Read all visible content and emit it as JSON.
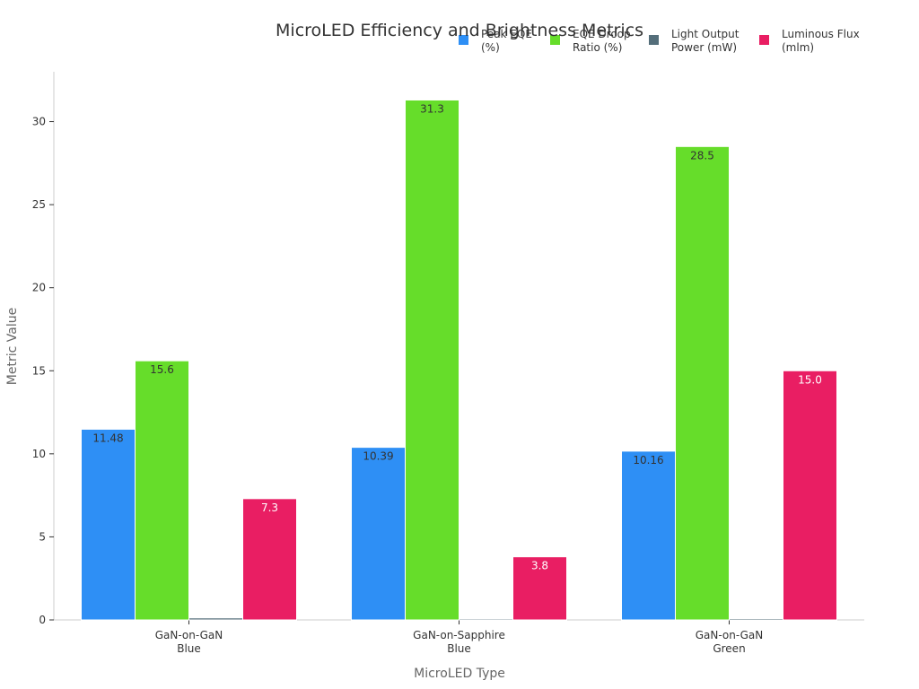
{
  "chart_data": {
    "type": "bar",
    "title": "MicroLED Efficiency and Brightness Metrics",
    "xlabel": "MicroLED Type",
    "ylabel": "Metric Value",
    "ylim": [
      0,
      33
    ],
    "yticks": [
      0,
      5,
      10,
      15,
      20,
      25,
      30
    ],
    "categories": [
      [
        "GaN-on-GaN",
        "Blue"
      ],
      [
        "GaN-on-Sapphire",
        "Blue"
      ],
      [
        "GaN-on-GaN",
        "Green"
      ]
    ],
    "series": [
      {
        "name": [
          "Peak EQE",
          "(%)"
        ],
        "color": "#2e8ff5",
        "label_color": "#333333",
        "values": [
          11.48,
          10.39,
          10.16
        ],
        "labels": [
          "11.48",
          "10.39",
          "10.16"
        ]
      },
      {
        "name": [
          "EQE Droop",
          "Ratio (%)"
        ],
        "color": "#66dd2a",
        "label_color": "#333333",
        "values": [
          15.6,
          31.3,
          28.5
        ],
        "labels": [
          "15.6",
          "31.3",
          "28.5"
        ]
      },
      {
        "name": [
          "Light Output",
          "Power (mW)"
        ],
        "color": "#546e7a",
        "label_color": "#333333",
        "values": [
          0.12,
          0.07,
          0.08
        ],
        "labels": [
          "",
          "",
          ""
        ]
      },
      {
        "name": [
          "Luminous Flux",
          "(mlm)"
        ],
        "color": "#e91e63",
        "label_color": "#ffffff",
        "values": [
          7.3,
          3.8,
          15.0
        ],
        "labels": [
          "7.3",
          "3.8",
          "15.0"
        ]
      }
    ],
    "legend_position": "top-right",
    "grid": false
  }
}
